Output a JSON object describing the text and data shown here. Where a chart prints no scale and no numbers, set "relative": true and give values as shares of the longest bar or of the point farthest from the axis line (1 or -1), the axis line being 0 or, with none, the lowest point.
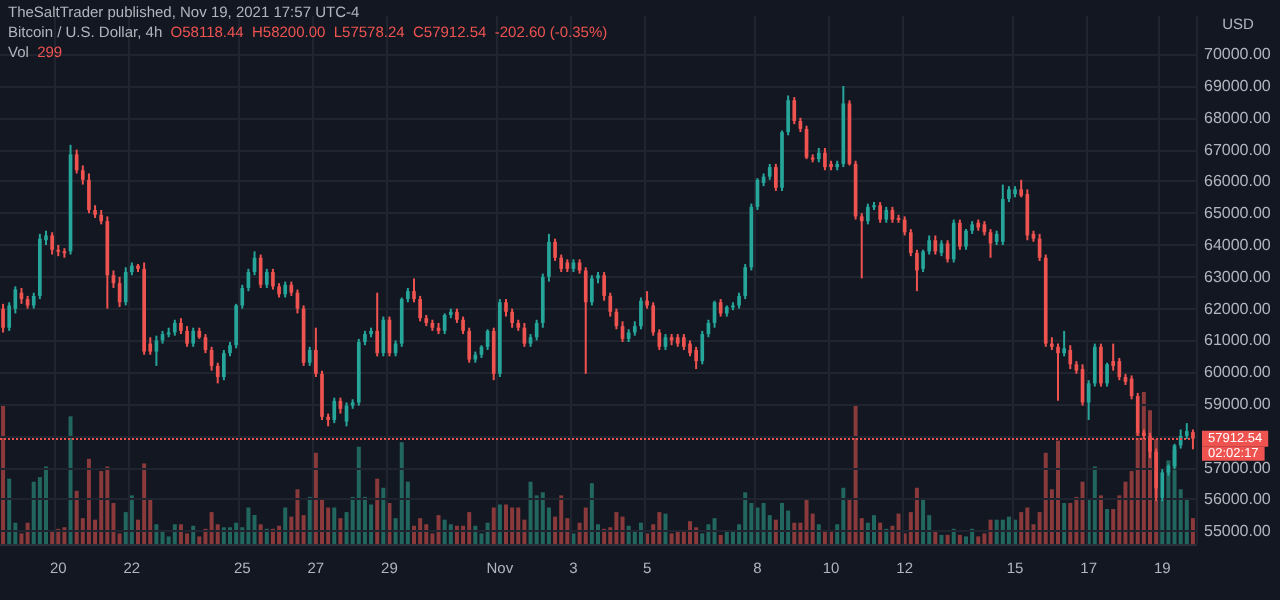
{
  "chart_data": [
    {
      "type": "candlestick",
      "title": "Bitcoin / U.S. Dollar, 4h",
      "ylabel": "USD",
      "annotations": [
        "TheSaltTrader published, Nov 19, 2021 17:57 UTC-4",
        "O58118.44",
        "H58200.00",
        "L57578.24",
        "C57912.54",
        "-202.60 (-0.35%)",
        "Vol",
        "299",
        "02:02:17"
      ],
      "categories": [
        null,
        null,
        null,
        null,
        null,
        null,
        null,
        null,
        null,
        "20",
        null,
        null,
        null,
        null,
        null,
        null,
        null,
        null,
        null,
        null,
        null,
        "22",
        null,
        null,
        null,
        null,
        null,
        null,
        null,
        null,
        null,
        null,
        null,
        null,
        null,
        null,
        null,
        null,
        null,
        "25",
        null,
        null,
        null,
        null,
        null,
        null,
        null,
        null,
        null,
        null,
        null,
        "27",
        null,
        null,
        null,
        null,
        null,
        null,
        null,
        null,
        null,
        null,
        null,
        "29",
        null,
        null,
        null,
        null,
        null,
        null,
        null,
        null,
        null,
        null,
        null,
        null,
        null,
        null,
        null,
        null,
        null,
        "Nov",
        null,
        null,
        null,
        null,
        null,
        null,
        null,
        null,
        null,
        null,
        null,
        "3",
        null,
        null,
        null,
        null,
        null,
        null,
        null,
        null,
        null,
        null,
        null,
        "5",
        null,
        null,
        null,
        null,
        null,
        null,
        null,
        null,
        null,
        null,
        null,
        null,
        null,
        null,
        null,
        null,
        null,
        "8",
        null,
        null,
        null,
        null,
        null,
        null,
        null,
        null,
        null,
        null,
        null,
        "10",
        null,
        null,
        null,
        null,
        null,
        null,
        null,
        null,
        null,
        null,
        null,
        "12",
        null,
        null,
        null,
        null,
        null,
        null,
        null,
        null,
        null,
        null,
        null,
        null,
        null,
        null,
        null,
        null,
        null,
        "15",
        null,
        null,
        null,
        null,
        null,
        null,
        null,
        null,
        null,
        null,
        null,
        "17",
        null,
        null,
        null,
        null,
        null,
        null,
        null,
        null,
        null,
        null,
        null,
        "19",
        null,
        null,
        null,
        null,
        null
      ],
      "ohlc": [
        [
          62000,
          62150,
          61250,
          61400
        ],
        [
          61400,
          62200,
          61300,
          62100
        ],
        [
          62000,
          62700,
          61850,
          62600
        ],
        [
          62500,
          62650,
          62150,
          62300
        ],
        [
          62300,
          62400,
          62000,
          62100
        ],
        [
          62100,
          62500,
          62000,
          62400
        ],
        [
          62400,
          64350,
          62300,
          64200
        ],
        [
          64150,
          64450,
          64000,
          64300
        ],
        [
          64300,
          64400,
          63700,
          63850
        ],
        [
          63850,
          64000,
          63650,
          63800
        ],
        [
          63800,
          63900,
          63600,
          63750
        ],
        [
          63800,
          67150,
          63700,
          66850
        ],
        [
          66850,
          67000,
          66250,
          66350
        ],
        [
          66350,
          66500,
          65900,
          66050
        ],
        [
          66050,
          66250,
          65000,
          65100
        ],
        [
          65100,
          65250,
          64850,
          64950
        ],
        [
          64950,
          65100,
          64650,
          64750
        ],
        [
          64750,
          64900,
          62000,
          63050
        ],
        [
          63050,
          63200,
          62650,
          62800
        ],
        [
          62800,
          63000,
          62050,
          62200
        ],
        [
          62200,
          63300,
          62100,
          63150
        ],
        [
          63150,
          63450,
          63050,
          63350
        ],
        [
          63350,
          63400,
          63150,
          63250
        ],
        [
          63250,
          63450,
          60550,
          60650
        ],
        [
          60900,
          61100,
          60550,
          60650
        ],
        [
          60650,
          61150,
          60200,
          61000
        ],
        [
          61000,
          61300,
          60900,
          61200
        ],
        [
          61200,
          61400,
          61100,
          61250
        ],
        [
          61250,
          61650,
          61150,
          61550
        ],
        [
          61550,
          61700,
          61200,
          61300
        ],
        [
          61300,
          61450,
          60800,
          60900
        ],
        [
          60900,
          61400,
          60800,
          61300
        ],
        [
          61300,
          61400,
          61050,
          61100
        ],
        [
          61100,
          61200,
          60600,
          60700
        ],
        [
          60700,
          60800,
          60050,
          60200
        ],
        [
          60200,
          60300,
          59650,
          59850
        ],
        [
          59850,
          60700,
          59750,
          60600
        ],
        [
          60600,
          60950,
          60500,
          60850
        ],
        [
          60850,
          62150,
          60750,
          62100
        ],
        [
          62100,
          62750,
          62000,
          62650
        ],
        [
          62650,
          63250,
          62550,
          63150
        ],
        [
          63150,
          63800,
          63050,
          63600
        ],
        [
          63600,
          63700,
          62650,
          62750
        ],
        [
          62750,
          63250,
          62650,
          63150
        ],
        [
          63150,
          63250,
          62600,
          62700
        ],
        [
          62700,
          62800,
          62350,
          62450
        ],
        [
          62450,
          62850,
          62350,
          62750
        ],
        [
          62750,
          62850,
          62400,
          62500
        ],
        [
          62500,
          62600,
          61850,
          62000
        ],
        [
          62000,
          62100,
          60200,
          60300
        ],
        [
          60300,
          60800,
          60200,
          60700
        ],
        [
          60700,
          61400,
          59850,
          59950
        ],
        [
          59950,
          60050,
          58500,
          58600
        ],
        [
          58600,
          58700,
          58300,
          58500
        ],
        [
          58500,
          59200,
          58400,
          59100
        ],
        [
          59100,
          59200,
          58700,
          58850
        ],
        [
          58450,
          59050,
          58300,
          58950
        ],
        [
          58950,
          59150,
          58850,
          59050
        ],
        [
          59050,
          61050,
          58950,
          60950
        ],
        [
          60950,
          61300,
          60850,
          61200
        ],
        [
          61200,
          61400,
          61100,
          61300
        ],
        [
          61300,
          62500,
          60500,
          60600
        ],
        [
          60600,
          61750,
          60500,
          61650
        ],
        [
          61650,
          61750,
          60500,
          60600
        ],
        [
          60600,
          61000,
          60500,
          60900
        ],
        [
          60900,
          62350,
          60800,
          62300
        ],
        [
          62300,
          62650,
          62200,
          62550
        ],
        [
          62550,
          62950,
          62200,
          62300
        ],
        [
          62300,
          62400,
          61600,
          61700
        ],
        [
          61700,
          61800,
          61450,
          61550
        ],
        [
          61550,
          61650,
          61300,
          61400
        ],
        [
          61400,
          61550,
          61200,
          61300
        ],
        [
          61300,
          61850,
          61200,
          61800
        ],
        [
          61800,
          62000,
          61700,
          61900
        ],
        [
          61900,
          62000,
          61550,
          61650
        ],
        [
          61650,
          61750,
          61200,
          61300
        ],
        [
          61300,
          61400,
          60300,
          60400
        ],
        [
          60400,
          60650,
          60300,
          60550
        ],
        [
          60550,
          60850,
          60450,
          60800
        ],
        [
          60800,
          61350,
          60700,
          61300
        ],
        [
          61300,
          61400,
          59750,
          59950
        ],
        [
          59950,
          62300,
          59850,
          62200
        ],
        [
          62200,
          62300,
          61750,
          61900
        ],
        [
          61900,
          62000,
          61400,
          61550
        ],
        [
          61550,
          61650,
          61300,
          61400
        ],
        [
          61400,
          61550,
          60800,
          60900
        ],
        [
          60900,
          61200,
          60800,
          61100
        ],
        [
          61100,
          61650,
          61000,
          61550
        ],
        [
          61550,
          63100,
          61400,
          63000
        ],
        [
          63000,
          64350,
          62850,
          64100
        ],
        [
          64100,
          64200,
          63500,
          63600
        ],
        [
          63600,
          63700,
          63150,
          63250
        ],
        [
          63450,
          63550,
          63150,
          63250
        ],
        [
          63250,
          63550,
          63150,
          63450
        ],
        [
          63450,
          63550,
          63100,
          63200
        ],
        [
          63200,
          63300,
          59950,
          62200
        ],
        [
          62200,
          63050,
          62100,
          62950
        ],
        [
          62950,
          63150,
          62800,
          63050
        ],
        [
          63050,
          63150,
          62250,
          62400
        ],
        [
          62400,
          62500,
          61750,
          61900
        ],
        [
          61900,
          62000,
          61350,
          61450
        ],
        [
          61450,
          61600,
          60950,
          61050
        ],
        [
          61050,
          61350,
          60950,
          61250
        ],
        [
          61250,
          61600,
          61150,
          61450
        ],
        [
          61450,
          62350,
          61350,
          62250
        ],
        [
          62250,
          62550,
          62000,
          62100
        ],
        [
          62100,
          62200,
          61150,
          61250
        ],
        [
          61250,
          61350,
          60700,
          60800
        ],
        [
          60800,
          61200,
          60700,
          61100
        ],
        [
          61100,
          61200,
          60850,
          61000
        ],
        [
          61100,
          61200,
          60800,
          60900
        ],
        [
          61100,
          61200,
          60700,
          60800
        ],
        [
          60900,
          61000,
          60500,
          60600
        ],
        [
          60700,
          60800,
          60100,
          60350
        ],
        [
          60350,
          61300,
          60250,
          61200
        ],
        [
          61200,
          61650,
          61100,
          61550
        ],
        [
          61550,
          62250,
          61400,
          62200
        ],
        [
          62200,
          62300,
          61750,
          61850
        ],
        [
          61850,
          62100,
          61750,
          62050
        ],
        [
          62050,
          62200,
          61950,
          62100
        ],
        [
          62100,
          62500,
          62000,
          62400
        ],
        [
          62400,
          63400,
          62300,
          63300
        ],
        [
          63300,
          65300,
          63200,
          65200
        ],
        [
          65200,
          66100,
          65100,
          66050
        ],
        [
          65950,
          66250,
          65850,
          66150
        ],
        [
          66150,
          66550,
          66050,
          66450
        ],
        [
          66450,
          66550,
          65700,
          65800
        ],
        [
          65800,
          67600,
          65700,
          67550
        ],
        [
          67550,
          68700,
          67450,
          68550
        ],
        [
          68550,
          68650,
          67800,
          67900
        ],
        [
          67900,
          68000,
          67550,
          67650
        ],
        [
          67650,
          67750,
          66700,
          66750
        ],
        [
          66750,
          66850,
          66600,
          66700
        ],
        [
          66700,
          67050,
          66600,
          66900
        ],
        [
          66900,
          67050,
          66350,
          66450
        ],
        [
          66550,
          66650,
          66350,
          66450
        ],
        [
          66450,
          66650,
          66350,
          66550
        ],
        [
          66550,
          69000,
          66450,
          68450
        ],
        [
          68450,
          68550,
          66500,
          66550
        ],
        [
          66550,
          66650,
          64800,
          64900
        ],
        [
          64900,
          65000,
          62950,
          64750
        ],
        [
          64750,
          65300,
          64650,
          65200
        ],
        [
          65200,
          65350,
          65100,
          65250
        ],
        [
          65250,
          65350,
          64700,
          64800
        ],
        [
          64800,
          65200,
          64700,
          65100
        ],
        [
          65100,
          65200,
          64700,
          64800
        ],
        [
          64850,
          64950,
          64700,
          64800
        ],
        [
          64800,
          64900,
          64300,
          64400
        ],
        [
          64400,
          64500,
          63650,
          63750
        ],
        [
          63750,
          63850,
          62550,
          63200
        ],
        [
          63250,
          63850,
          63150,
          63800
        ],
        [
          63800,
          64300,
          63700,
          64150
        ],
        [
          64150,
          64300,
          63700,
          63800
        ],
        [
          63750,
          64150,
          63650,
          64050
        ],
        [
          64050,
          64150,
          63450,
          63550
        ],
        [
          63550,
          64800,
          63450,
          64700
        ],
        [
          64700,
          64800,
          63850,
          63950
        ],
        [
          63950,
          64500,
          63850,
          64450
        ],
        [
          64450,
          64750,
          64350,
          64650
        ],
        [
          64700,
          64800,
          64450,
          64550
        ],
        [
          64650,
          64750,
          64300,
          64400
        ],
        [
          64400,
          64500,
          63600,
          64050
        ],
        [
          64100,
          64450,
          64000,
          64350
        ],
        [
          64100,
          65900,
          64000,
          65450
        ],
        [
          65450,
          65850,
          65350,
          65750
        ],
        [
          65600,
          65850,
          65500,
          65750
        ],
        [
          65750,
          66050,
          65500,
          65550
        ],
        [
          65600,
          65750,
          64150,
          64300
        ],
        [
          64350,
          64450,
          64100,
          64200
        ],
        [
          64200,
          64350,
          63500,
          63600
        ],
        [
          63600,
          63700,
          60800,
          60900
        ],
        [
          60900,
          61100,
          60700,
          60800
        ],
        [
          60800,
          60900,
          59100,
          60600
        ],
        [
          60600,
          61300,
          60500,
          60750
        ],
        [
          60700,
          60850,
          60100,
          60250
        ],
        [
          60250,
          60350,
          59950,
          60050
        ],
        [
          60100,
          60250,
          58950,
          59050
        ],
        [
          59050,
          59750,
          58500,
          59650
        ],
        [
          59650,
          60900,
          59550,
          60800
        ],
        [
          60800,
          60900,
          59550,
          59650
        ],
        [
          59650,
          60300,
          59550,
          60250
        ],
        [
          60350,
          60900,
          60050,
          60200
        ],
        [
          60350,
          60450,
          59750,
          59850
        ],
        [
          59850,
          59950,
          59600,
          59700
        ],
        [
          59800,
          59900,
          59150,
          59250
        ],
        [
          59250,
          59350,
          58000,
          58100
        ],
        [
          58100,
          58200,
          57900,
          58000
        ],
        [
          58000,
          58100,
          57300,
          57500
        ],
        [
          57500,
          57600,
          55950,
          56350
        ],
        [
          56050,
          56950,
          55950,
          56850
        ],
        [
          56850,
          57100,
          56750,
          57050
        ],
        [
          57050,
          57750,
          56950,
          57700
        ],
        [
          57700,
          58200,
          57600,
          58000
        ],
        [
          58000,
          58400,
          57900,
          58150
        ],
        [
          58118.44,
          58200.0,
          57578.24,
          57912.54
        ]
      ],
      "colors": [
        "#ef5350",
        "#26a69a",
        "#26a69a",
        "#ef5350",
        "#ef5350",
        "#26a69a",
        "#26a69a",
        "#26a69a",
        "#ef5350",
        "#ef5350",
        "#ef5350",
        "#26a69a",
        "#ef5350",
        "#ef5350",
        "#ef5350",
        "#ef5350",
        "#ef5350",
        "#ef5350",
        "#ef5350",
        "#ef5350",
        "#26a69a",
        "#26a69a",
        "#ef5350",
        "#ef5350",
        "#ef5350",
        "#26a69a",
        "#26a69a",
        "#26a69a",
        "#26a69a",
        "#ef5350",
        "#ef5350",
        "#26a69a",
        "#ef5350",
        "#ef5350",
        "#ef5350",
        "#ef5350",
        "#26a69a",
        "#26a69a",
        "#26a69a",
        "#26a69a",
        "#26a69a",
        "#26a69a",
        "#ef5350",
        "#26a69a",
        "#ef5350",
        "#ef5350",
        "#26a69a",
        "#ef5350",
        "#ef5350",
        "#ef5350",
        "#26a69a",
        "#ef5350",
        "#ef5350",
        "#ef5350",
        "#26a69a",
        "#ef5350",
        "#26a69a",
        "#26a69a",
        "#26a69a",
        "#26a69a",
        "#26a69a",
        "#ef5350",
        "#26a69a",
        "#ef5350",
        "#26a69a",
        "#26a69a",
        "#26a69a",
        "#ef5350",
        "#ef5350",
        "#ef5350",
        "#ef5350",
        "#ef5350",
        "#26a69a",
        "#26a69a",
        "#ef5350",
        "#ef5350",
        "#ef5350",
        "#26a69a",
        "#26a69a",
        "#26a69a",
        "#ef5350",
        "#26a69a",
        "#ef5350",
        "#ef5350",
        "#ef5350",
        "#ef5350",
        "#26a69a",
        "#26a69a",
        "#26a69a",
        "#26a69a",
        "#ef5350",
        "#ef5350",
        "#ef5350",
        "#26a69a",
        "#ef5350",
        "#ef5350",
        "#26a69a",
        "#26a69a",
        "#ef5350",
        "#ef5350",
        "#ef5350",
        "#ef5350",
        "#26a69a",
        "#26a69a",
        "#26a69a",
        "#ef5350",
        "#ef5350",
        "#ef5350",
        "#26a69a",
        "#ef5350",
        "#ef5350",
        "#ef5350",
        "#ef5350",
        "#ef5350",
        "#26a69a",
        "#26a69a",
        "#26a69a",
        "#ef5350",
        "#26a69a",
        "#26a69a",
        "#26a69a",
        "#26a69a",
        "#26a69a",
        "#26a69a",
        "#26a69a",
        "#26a69a",
        "#ef5350",
        "#26a69a",
        "#26a69a",
        "#ef5350",
        "#ef5350",
        "#ef5350",
        "#ef5350",
        "#26a69a",
        "#ef5350",
        "#ef5350",
        "#26a69a",
        "#26a69a",
        "#ef5350",
        "#ef5350",
        "#ef5350",
        "#26a69a",
        "#26a69a",
        "#ef5350",
        "#26a69a",
        "#ef5350",
        "#ef5350",
        "#ef5350",
        "#ef5350",
        "#ef5350",
        "#26a69a",
        "#26a69a",
        "#ef5350",
        "#26a69a",
        "#ef5350",
        "#26a69a",
        "#ef5350",
        "#26a69a",
        "#26a69a",
        "#ef5350",
        "#ef5350",
        "#ef5350",
        "#26a69a",
        "#26a69a",
        "#26a69a",
        "#26a69a",
        "#ef5350",
        "#ef5350",
        "#ef5350",
        "#ef5350",
        "#ef5350",
        "#ef5350",
        "#ef5350",
        "#26a69a",
        "#ef5350",
        "#ef5350",
        "#ef5350",
        "#26a69a",
        "#26a69a",
        "#ef5350",
        "#26a69a",
        "#ef5350",
        "#ef5350",
        "#ef5350",
        "#ef5350",
        "#ef5350",
        "#ef5350",
        "#ef5350",
        "#ef5350",
        "#26a69a",
        "#26a69a",
        "#26a69a",
        "#26a69a",
        "#26a69a",
        "#ef5350"
      ],
      "ylim": [
        54600,
        71200
      ],
      "yticks": [
        {
          "value": 55000,
          "label": "55000.00"
        },
        {
          "value": 56000,
          "label": "56000.00"
        },
        {
          "value": 57000,
          "label": "57000.00"
        },
        {
          "value": 58000,
          "label": null
        },
        {
          "value": 59000,
          "label": "59000.00"
        },
        {
          "value": 60000,
          "label": "60000.00"
        },
        {
          "value": 61000,
          "label": "61000.00"
        },
        {
          "value": 62000,
          "label": "62000.00"
        },
        {
          "value": 63000,
          "label": "63000.00"
        },
        {
          "value": 64000,
          "label": "64000.00"
        },
        {
          "value": 65000,
          "label": "65000.00"
        },
        {
          "value": 66000,
          "label": "66000.00"
        },
        {
          "value": 67000,
          "label": "67000.00"
        },
        {
          "value": 68000,
          "label": "68000.00"
        },
        {
          "value": 69000,
          "label": "69000.00"
        },
        {
          "value": 70000,
          "label": "70000.00"
        }
      ],
      "grid": true,
      "ref_lines": [
        {
          "axis": "y",
          "value": 57912.54,
          "label": "57912.54",
          "color": "#ef5350",
          "line_style": "dotted"
        }
      ]
    },
    {
      "type": "bar",
      "relative": true,
      "values": [
        0.92,
        0.43,
        0.14,
        0.07,
        0.14,
        0.41,
        0.44,
        0.51,
        0.08,
        0.1,
        0.11,
        0.84,
        0.35,
        0.17,
        0.56,
        0.16,
        0.48,
        0.51,
        0.27,
        0.07,
        0.21,
        0.32,
        0.16,
        0.53,
        0.29,
        0.13,
        0.08,
        0.05,
        0.13,
        0.13,
        0.07,
        0.12,
        0.05,
        0.1,
        0.21,
        0.13,
        0.11,
        0.11,
        0.14,
        0.11,
        0.24,
        0.19,
        0.13,
        0.1,
        0.1,
        0.12,
        0.24,
        0.18,
        0.36,
        0.19,
        0.31,
        0.6,
        0.3,
        0.24,
        0.24,
        0.17,
        0.21,
        0.31,
        0.64,
        0.31,
        0.26,
        0.43,
        0.37,
        0.27,
        0.17,
        0.67,
        0.41,
        0.12,
        0.17,
        0.13,
        0.07,
        0.19,
        0.16,
        0.13,
        0.12,
        0.12,
        0.21,
        0.12,
        0.07,
        0.14,
        0.24,
        0.26,
        0.26,
        0.24,
        0.24,
        0.16,
        0.41,
        0.32,
        0.34,
        0.24,
        0.18,
        0.32,
        0.17,
        0.07,
        0.14,
        0.24,
        0.4,
        0.13,
        0.1,
        0.11,
        0.21,
        0.18,
        0.12,
        0.08,
        0.14,
        0.07,
        0.13,
        0.21,
        0.2,
        0.07,
        0.08,
        0.08,
        0.15,
        0.11,
        0.07,
        0.13,
        0.17,
        0.06,
        0.08,
        0.08,
        0.13,
        0.34,
        0.27,
        0.24,
        0.27,
        0.19,
        0.16,
        0.27,
        0.22,
        0.14,
        0.14,
        0.3,
        0.2,
        0.13,
        0.08,
        0.08,
        0.13,
        0.37,
        0.29,
        0.92,
        0.17,
        0.14,
        0.19,
        0.14,
        0.1,
        0.12,
        0.2,
        0.07,
        0.21,
        0.37,
        0.3,
        0.19,
        0.08,
        0.06,
        0.06,
        0.1,
        0.06,
        0.05,
        0.1,
        0.05,
        0.07,
        0.16,
        0.16,
        0.16,
        0.18,
        0.16,
        0.21,
        0.24,
        0.13,
        0.21,
        0.6,
        0.36,
        0.68,
        0.27,
        0.27,
        0.31,
        0.41,
        0.3,
        0.51,
        0.32,
        0.23,
        0.23,
        0.32,
        0.41,
        0.48,
        0.74,
        1,
        0.88,
        0.69,
        0.29,
        0.55,
        0.62,
        0.36,
        0.29,
        0.17
      ],
      "colors": [
        "#8a3a3a",
        "#22675f",
        "#22675f",
        "#8a3a3a",
        "#8a3a3a",
        "#22675f",
        "#22675f",
        "#22675f",
        "#8a3a3a",
        "#8a3a3a",
        "#8a3a3a",
        "#22675f",
        "#8a3a3a",
        "#8a3a3a",
        "#8a3a3a",
        "#8a3a3a",
        "#8a3a3a",
        "#8a3a3a",
        "#8a3a3a",
        "#8a3a3a",
        "#22675f",
        "#22675f",
        "#8a3a3a",
        "#8a3a3a",
        "#8a3a3a",
        "#22675f",
        "#22675f",
        "#22675f",
        "#22675f",
        "#8a3a3a",
        "#8a3a3a",
        "#22675f",
        "#8a3a3a",
        "#8a3a3a",
        "#8a3a3a",
        "#8a3a3a",
        "#22675f",
        "#22675f",
        "#22675f",
        "#22675f",
        "#22675f",
        "#22675f",
        "#8a3a3a",
        "#22675f",
        "#8a3a3a",
        "#8a3a3a",
        "#22675f",
        "#8a3a3a",
        "#8a3a3a",
        "#8a3a3a",
        "#22675f",
        "#8a3a3a",
        "#8a3a3a",
        "#8a3a3a",
        "#22675f",
        "#8a3a3a",
        "#22675f",
        "#22675f",
        "#22675f",
        "#22675f",
        "#22675f",
        "#8a3a3a",
        "#22675f",
        "#8a3a3a",
        "#22675f",
        "#22675f",
        "#22675f",
        "#8a3a3a",
        "#8a3a3a",
        "#8a3a3a",
        "#8a3a3a",
        "#8a3a3a",
        "#22675f",
        "#22675f",
        "#8a3a3a",
        "#8a3a3a",
        "#8a3a3a",
        "#22675f",
        "#22675f",
        "#22675f",
        "#8a3a3a",
        "#22675f",
        "#8a3a3a",
        "#8a3a3a",
        "#8a3a3a",
        "#8a3a3a",
        "#22675f",
        "#22675f",
        "#22675f",
        "#22675f",
        "#8a3a3a",
        "#8a3a3a",
        "#8a3a3a",
        "#22675f",
        "#8a3a3a",
        "#8a3a3a",
        "#22675f",
        "#22675f",
        "#8a3a3a",
        "#8a3a3a",
        "#8a3a3a",
        "#8a3a3a",
        "#22675f",
        "#22675f",
        "#22675f",
        "#8a3a3a",
        "#8a3a3a",
        "#8a3a3a",
        "#22675f",
        "#8a3a3a",
        "#8a3a3a",
        "#8a3a3a",
        "#8a3a3a",
        "#8a3a3a",
        "#22675f",
        "#22675f",
        "#22675f",
        "#8a3a3a",
        "#22675f",
        "#22675f",
        "#22675f",
        "#22675f",
        "#22675f",
        "#22675f",
        "#22675f",
        "#22675f",
        "#8a3a3a",
        "#22675f",
        "#22675f",
        "#8a3a3a",
        "#8a3a3a",
        "#8a3a3a",
        "#8a3a3a",
        "#22675f",
        "#8a3a3a",
        "#8a3a3a",
        "#22675f",
        "#22675f",
        "#8a3a3a",
        "#8a3a3a",
        "#8a3a3a",
        "#22675f",
        "#22675f",
        "#8a3a3a",
        "#22675f",
        "#8a3a3a",
        "#8a3a3a",
        "#8a3a3a",
        "#8a3a3a",
        "#8a3a3a",
        "#22675f",
        "#22675f",
        "#8a3a3a",
        "#22675f",
        "#8a3a3a",
        "#22675f",
        "#8a3a3a",
        "#22675f",
        "#22675f",
        "#8a3a3a",
        "#8a3a3a",
        "#8a3a3a",
        "#22675f",
        "#22675f",
        "#22675f",
        "#22675f",
        "#8a3a3a",
        "#8a3a3a",
        "#8a3a3a",
        "#8a3a3a",
        "#8a3a3a",
        "#8a3a3a",
        "#8a3a3a",
        "#22675f",
        "#8a3a3a",
        "#8a3a3a",
        "#8a3a3a",
        "#22675f",
        "#22675f",
        "#8a3a3a",
        "#22675f",
        "#8a3a3a",
        "#8a3a3a",
        "#8a3a3a",
        "#8a3a3a",
        "#8a3a3a",
        "#8a3a3a",
        "#8a3a3a",
        "#8a3a3a",
        "#22675f",
        "#22675f",
        "#22675f",
        "#22675f",
        "#22675f",
        "#8a3a3a"
      ]
    }
  ]
}
